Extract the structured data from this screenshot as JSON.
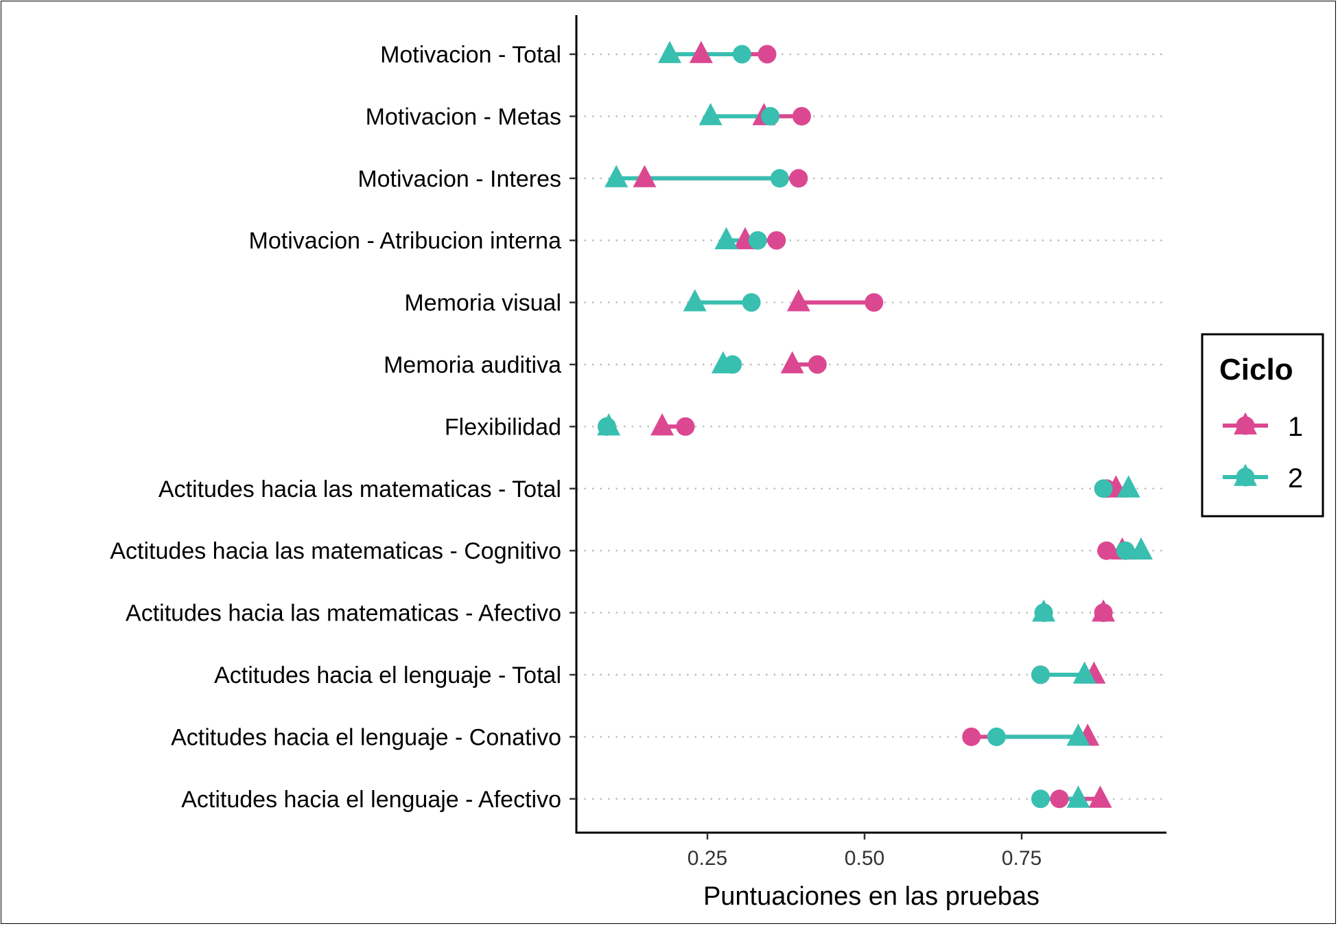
{
  "chart_data": {
    "type": "dumbbell",
    "title": "",
    "xlabel": "Puntuaciones en las pruebas",
    "ylabel": "",
    "xlim": [
      0.045,
      1.0
    ],
    "x_ticks": [
      0.25,
      0.5,
      0.75
    ],
    "x_tick_labels": [
      "0.25",
      "0.50",
      "0.75"
    ],
    "grid": "horizontal dotted",
    "legend": {
      "title": "Ciclo",
      "placement": "right",
      "labels": [
        "1",
        "2"
      ]
    },
    "colors": {
      "1": "#DB4891",
      "2": "#38BFB0"
    },
    "marker_meaning": {
      "circle": "start",
      "triangle": "end"
    },
    "categories": [
      "Motivacion - Total",
      "Motivacion - Metas",
      "Motivacion - Interes",
      "Motivacion - Atribucion interna",
      "Memoria visual",
      "Memoria auditiva",
      "Flexibilidad",
      "Actitudes hacia las matematicas - Total",
      "Actitudes hacia las matematicas - Cognitivo",
      "Actitudes hacia las matematicas - Afectivo",
      "Actitudes hacia el lenguaje - Total",
      "Actitudes hacia el lenguaje - Conativo",
      "Actitudes hacia el lenguaje - Afectivo"
    ],
    "series": [
      {
        "name": "1",
        "circle": [
          0.345,
          0.4,
          0.395,
          0.36,
          0.515,
          0.425,
          0.215,
          0.885,
          0.885,
          0.88,
          0.78,
          0.67,
          0.81
        ],
        "triangle": [
          0.24,
          0.34,
          0.15,
          0.31,
          0.395,
          0.385,
          0.178,
          0.9,
          0.91,
          0.88,
          0.865,
          0.855,
          0.875
        ]
      },
      {
        "name": "2",
        "circle": [
          0.305,
          0.35,
          0.365,
          0.33,
          0.32,
          0.29,
          0.09,
          0.88,
          0.915,
          0.785,
          0.78,
          0.71,
          0.78
        ],
        "triangle": [
          0.19,
          0.255,
          0.105,
          0.28,
          0.23,
          0.275,
          0.093,
          0.92,
          0.94,
          0.785,
          0.85,
          0.84,
          0.84
        ]
      }
    ]
  }
}
